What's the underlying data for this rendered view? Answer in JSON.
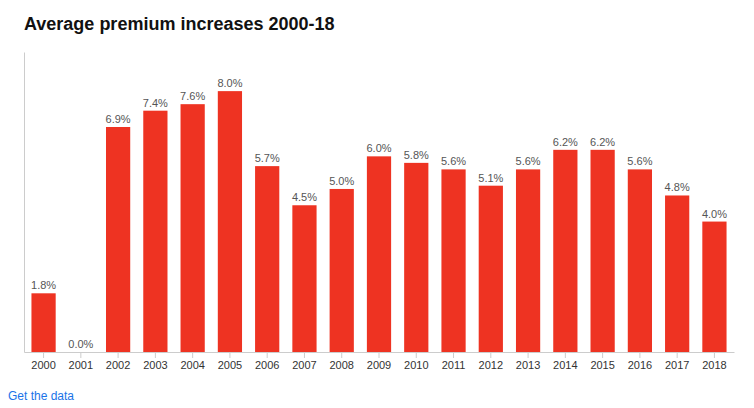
{
  "chart_data": {
    "type": "bar",
    "title": "Average premium increases 2000-18",
    "categories": [
      "2000",
      "2001",
      "2002",
      "2003",
      "2004",
      "2005",
      "2006",
      "2007",
      "2008",
      "2009",
      "2010",
      "2011",
      "2012",
      "2013",
      "2014",
      "2015",
      "2016",
      "2017",
      "2018"
    ],
    "values": [
      1.8,
      0.0,
      6.9,
      7.4,
      7.6,
      8.0,
      5.7,
      4.5,
      5.0,
      6.0,
      5.8,
      5.6,
      5.1,
      5.6,
      6.2,
      6.2,
      5.6,
      4.8,
      4.0
    ],
    "value_labels": [
      "1.8%",
      "0.0%",
      "6.9%",
      "7.4%",
      "7.6%",
      "8.0%",
      "5.7%",
      "4.5%",
      "5.0%",
      "6.0%",
      "5.8%",
      "5.6%",
      "5.1%",
      "5.6%",
      "6.2%",
      "6.2%",
      "5.6%",
      "4.8%",
      "4.0%"
    ],
    "color": "#ee3322",
    "ylim": [
      0,
      9.2
    ],
    "grid": false,
    "data_labels": true,
    "tick_labels": "x",
    "annotations": [
      {
        "text": "Get the data",
        "color": "#1a73e8"
      }
    ]
  }
}
